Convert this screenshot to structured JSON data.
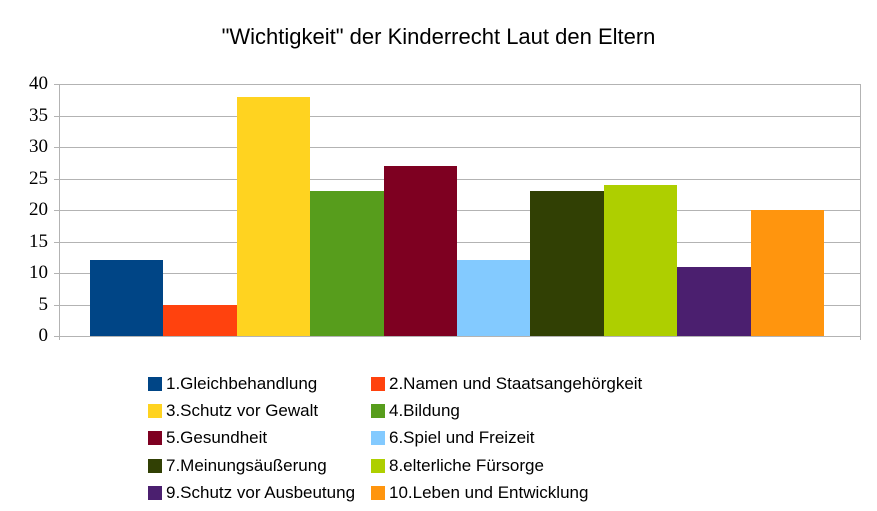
{
  "title": "\"Wichtigkeit\" der Kinderrecht Laut den Eltern",
  "colors": {
    "background": "#ffffff",
    "grid": "#b3b3b3",
    "text": "#000000"
  },
  "chart_data": {
    "type": "bar",
    "title": "\"Wichtigkeit\" der Kinderrecht Laut den Eltern",
    "xlabel": "",
    "ylabel": "",
    "ylim": [
      0,
      40
    ],
    "ytick_step": 5,
    "yticks": [
      0,
      5,
      10,
      15,
      20,
      25,
      30,
      35,
      40
    ],
    "grid": "horizontal",
    "legend_position": "bottom",
    "legend_columns": 2,
    "series": [
      {
        "name": "1.Gleichbehandlung",
        "value": 12,
        "color": "#004586"
      },
      {
        "name": "2.Namen und Staatsangehörgkeit",
        "value": 5,
        "color": "#FF420E"
      },
      {
        "name": "3.Schutz vor Gewalt",
        "value": 38,
        "color": "#FFD320"
      },
      {
        "name": "4.Bildung",
        "value": 23,
        "color": "#579D1C"
      },
      {
        "name": "5.Gesundheit",
        "value": 27,
        "color": "#7E0021"
      },
      {
        "name": "6.Spiel und Freizeit",
        "value": 12,
        "color": "#83CAFF"
      },
      {
        "name": "7.Meinungsäußerung",
        "value": 23,
        "color": "#314004"
      },
      {
        "name": "8.elterliche Fürsorge",
        "value": 24,
        "color": "#AECF00"
      },
      {
        "name": "9.Schutz vor Ausbeutung",
        "value": 11,
        "color": "#4B1F6F"
      },
      {
        "name": "10.Leben und Entwicklung",
        "value": 20,
        "color": "#FF950E"
      }
    ]
  }
}
